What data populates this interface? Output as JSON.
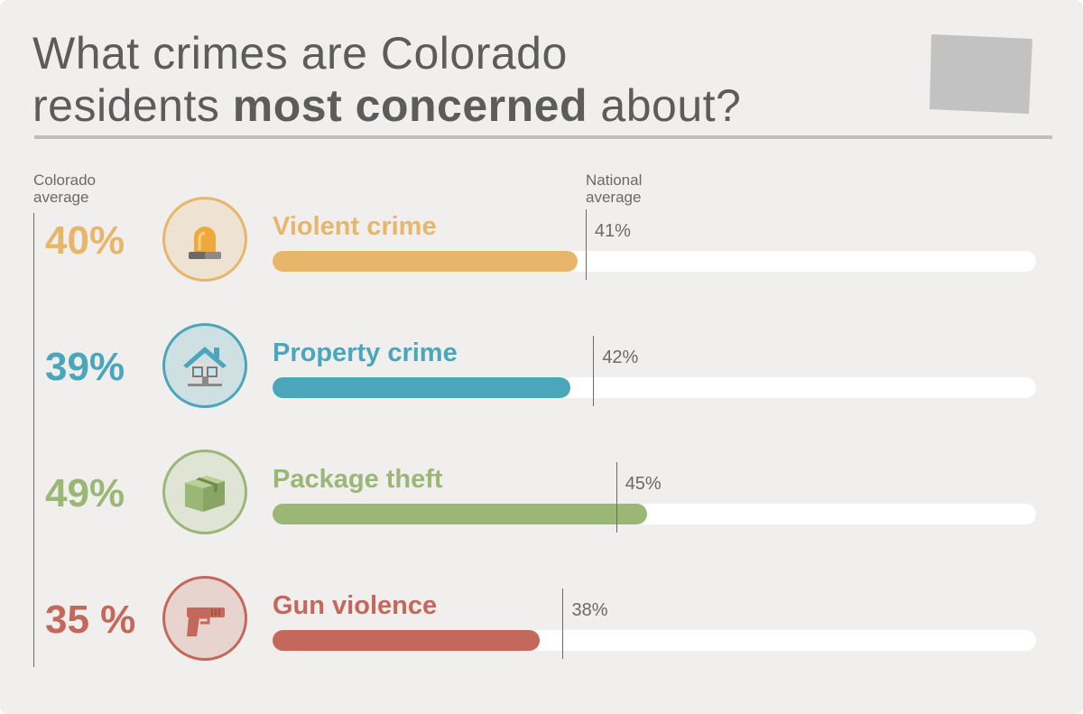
{
  "title": {
    "line1": "What crimes are Colorado",
    "line2_start": "residents ",
    "line2_bold": "most concerned",
    "line2_end": " about?"
  },
  "legend": {
    "colorado_line1": "Colorado",
    "colorado_line2": "average",
    "national_line1": "National",
    "national_line2": "average"
  },
  "icons": [
    "siren-icon",
    "house-icon",
    "package-box-icon",
    "handgun-icon"
  ],
  "colors": {
    "background": "#f0efed",
    "violent": "#e8b66a",
    "property": "#4aa6ba",
    "package": "#9bb776",
    "gun": "#c3685a"
  },
  "chart_data": {
    "type": "bar",
    "orientation": "horizontal",
    "xlim": [
      0,
      100
    ],
    "categories": [
      "Violent crime",
      "Property crime",
      "Package theft",
      "Gun violence"
    ],
    "series": [
      {
        "name": "Colorado average",
        "values": [
          40,
          39,
          49,
          35
        ],
        "labels": [
          "40%",
          "39%",
          "49%",
          "35 %"
        ]
      },
      {
        "name": "National average",
        "values": [
          41,
          42,
          45,
          38
        ],
        "labels": [
          "41%",
          "42%",
          "45%",
          "38%"
        ]
      }
    ]
  }
}
